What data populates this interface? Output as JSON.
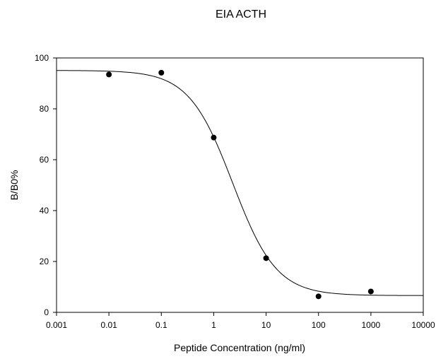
{
  "chart_data": {
    "type": "scatter",
    "title": "EIA ACTH",
    "xlabel": "Peptide Concentration (ng/ml)",
    "ylabel": "B/B0%",
    "x_scale": "log",
    "xlim": [
      0.001,
      10000
    ],
    "ylim": [
      0,
      100
    ],
    "x_ticks": [
      0.001,
      0.01,
      0.1,
      1,
      10,
      100,
      1000,
      10000
    ],
    "x_tick_labels": [
      "0.001",
      "0.01",
      "0.1",
      "1",
      "10",
      "100",
      "1000",
      "10000"
    ],
    "y_ticks": [
      0,
      20,
      40,
      60,
      80,
      100
    ],
    "y_tick_labels": [
      "0",
      "20",
      "40",
      "60",
      "80",
      "100"
    ],
    "grid": false,
    "legend": "none",
    "series": [
      {
        "marker": "filled-circle",
        "color": "#000000",
        "points": [
          {
            "x": 0.01,
            "y": 93.5
          },
          {
            "x": 0.1,
            "y": 94.2
          },
          {
            "x": 1,
            "y": 68.7
          },
          {
            "x": 10,
            "y": 21.3
          },
          {
            "x": 100,
            "y": 6.3
          },
          {
            "x": 1000,
            "y": 8.2
          }
        ]
      }
    ],
    "fit_curve": {
      "model": "4-parameter logistic",
      "top": 95.1,
      "bottom": 6.6,
      "ec50": 2.3,
      "hill_slope": 1.04,
      "color": "#000000"
    }
  }
}
